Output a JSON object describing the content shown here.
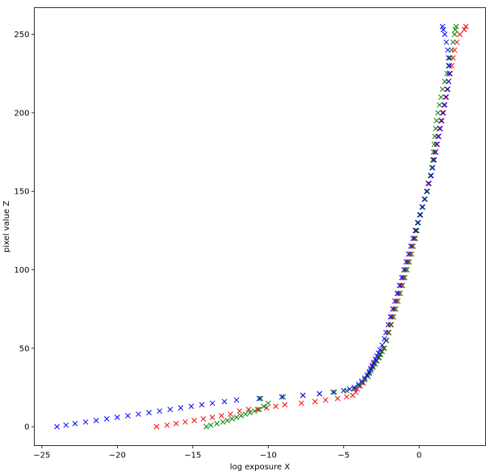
{
  "chart_data": {
    "type": "scatter",
    "title": "",
    "xlabel": "log exposure X",
    "ylabel": "pixel value Z",
    "xlim": [
      -25.5,
      4.4
    ],
    "ylim": [
      -12,
      267
    ],
    "xticks": [
      -25,
      -20,
      -15,
      -10,
      -5,
      0
    ],
    "yticks": [
      0,
      50,
      100,
      150,
      200,
      250
    ],
    "grid": false,
    "legend": "none",
    "marker": "x",
    "series": [
      {
        "color": "#ff0000",
        "points": [
          [
            -17.4,
            0
          ],
          [
            -16.7,
            1
          ],
          [
            -16.1,
            2
          ],
          [
            -15.5,
            3
          ],
          [
            -14.9,
            4
          ],
          [
            -14.3,
            5
          ],
          [
            -13.7,
            6
          ],
          [
            -13.1,
            7
          ],
          [
            -12.5,
            8
          ],
          [
            -11.9,
            10
          ],
          [
            -11.3,
            11
          ],
          [
            -10.7,
            11
          ],
          [
            -10.1,
            12
          ],
          [
            -9.5,
            13
          ],
          [
            -8.9,
            14
          ],
          [
            -7.8,
            15
          ],
          [
            -6.9,
            16
          ],
          [
            -6.2,
            17
          ],
          [
            -5.4,
            18
          ],
          [
            -4.8,
            19
          ],
          [
            -4.4,
            20
          ],
          [
            -4.2,
            22
          ],
          [
            -4.1,
            24
          ],
          [
            -3.9,
            26
          ],
          [
            -3.7,
            28
          ],
          [
            -3.6,
            30
          ],
          [
            -3.4,
            32
          ],
          [
            -3.3,
            34
          ],
          [
            -3.2,
            36
          ],
          [
            -3.1,
            38
          ],
          [
            -3.0,
            40
          ],
          [
            -2.85,
            42
          ],
          [
            -2.7,
            44
          ],
          [
            -2.6,
            46
          ],
          [
            -2.45,
            48
          ],
          [
            -2.35,
            50
          ],
          [
            -2.2,
            55
          ],
          [
            -2.05,
            60
          ],
          [
            -1.9,
            65
          ],
          [
            -1.8,
            70
          ],
          [
            -1.65,
            75
          ],
          [
            -1.5,
            80
          ],
          [
            -1.35,
            85
          ],
          [
            -1.2,
            90
          ],
          [
            -1.05,
            95
          ],
          [
            -0.9,
            100
          ],
          [
            -0.75,
            105
          ],
          [
            -0.6,
            110
          ],
          [
            -0.45,
            115
          ],
          [
            -0.3,
            120
          ],
          [
            -0.2,
            125
          ],
          [
            -0.1,
            130
          ],
          [
            0.05,
            135
          ],
          [
            0.2,
            140
          ],
          [
            0.35,
            145
          ],
          [
            0.5,
            150
          ],
          [
            0.6,
            155
          ],
          [
            0.75,
            160
          ],
          [
            0.85,
            165
          ],
          [
            0.95,
            170
          ],
          [
            1.05,
            175
          ],
          [
            1.15,
            180
          ],
          [
            1.25,
            185
          ],
          [
            1.35,
            190
          ],
          [
            1.45,
            195
          ],
          [
            1.55,
            200
          ],
          [
            1.65,
            205
          ],
          [
            1.75,
            210
          ],
          [
            1.85,
            215
          ],
          [
            1.95,
            220
          ],
          [
            2.05,
            225
          ],
          [
            2.15,
            230
          ],
          [
            2.25,
            235
          ],
          [
            2.35,
            240
          ],
          [
            2.5,
            245
          ],
          [
            2.7,
            250
          ],
          [
            3.0,
            253
          ],
          [
            3.1,
            255
          ]
        ]
      },
      {
        "color": "#008000",
        "points": [
          [
            -14.1,
            0
          ],
          [
            -13.8,
            1
          ],
          [
            -13.4,
            2
          ],
          [
            -13.0,
            3
          ],
          [
            -12.7,
            4
          ],
          [
            -12.4,
            5
          ],
          [
            -12.1,
            6
          ],
          [
            -11.8,
            7
          ],
          [
            -11.5,
            8
          ],
          [
            -11.2,
            9
          ],
          [
            -10.9,
            10
          ],
          [
            -10.6,
            11
          ],
          [
            -10.3,
            13
          ],
          [
            -10.0,
            15
          ],
          [
            -10.5,
            18
          ],
          [
            -9.0,
            19
          ],
          [
            -7.7,
            20
          ],
          [
            -6.6,
            21
          ],
          [
            -5.6,
            22
          ],
          [
            -4.8,
            23
          ],
          [
            -4.3,
            24
          ],
          [
            -4.0,
            26
          ],
          [
            -3.8,
            28
          ],
          [
            -3.6,
            30
          ],
          [
            -3.4,
            32
          ],
          [
            -3.3,
            34
          ],
          [
            -3.2,
            36
          ],
          [
            -3.05,
            38
          ],
          [
            -2.9,
            40
          ],
          [
            -2.8,
            42
          ],
          [
            -2.65,
            44
          ],
          [
            -2.55,
            46
          ],
          [
            -2.45,
            48
          ],
          [
            -2.3,
            50
          ],
          [
            -2.15,
            55
          ],
          [
            -2.0,
            60
          ],
          [
            -1.85,
            65
          ],
          [
            -1.7,
            70
          ],
          [
            -1.55,
            75
          ],
          [
            -1.4,
            80
          ],
          [
            -1.25,
            85
          ],
          [
            -1.1,
            90
          ],
          [
            -0.95,
            95
          ],
          [
            -0.8,
            100
          ],
          [
            -0.65,
            105
          ],
          [
            -0.5,
            110
          ],
          [
            -0.4,
            115
          ],
          [
            -0.25,
            120
          ],
          [
            -0.15,
            125
          ],
          [
            -0.05,
            130
          ],
          [
            0.1,
            135
          ],
          [
            0.25,
            140
          ],
          [
            0.4,
            145
          ],
          [
            0.55,
            150
          ],
          [
            0.65,
            155
          ],
          [
            0.75,
            160
          ],
          [
            0.85,
            165
          ],
          [
            0.9,
            170
          ],
          [
            0.95,
            175
          ],
          [
            1.0,
            180
          ],
          [
            1.05,
            185
          ],
          [
            1.1,
            190
          ],
          [
            1.15,
            195
          ],
          [
            1.25,
            200
          ],
          [
            1.35,
            205
          ],
          [
            1.45,
            210
          ],
          [
            1.55,
            215
          ],
          [
            1.7,
            220
          ],
          [
            1.85,
            225
          ],
          [
            1.95,
            230
          ],
          [
            2.05,
            235
          ],
          [
            2.15,
            240
          ],
          [
            2.25,
            245
          ],
          [
            2.35,
            250
          ],
          [
            2.4,
            253
          ],
          [
            2.45,
            255
          ]
        ]
      },
      {
        "color": "#0000ff",
        "points": [
          [
            -24.0,
            0
          ],
          [
            -23.4,
            1
          ],
          [
            -22.8,
            2
          ],
          [
            -22.1,
            3
          ],
          [
            -21.4,
            4
          ],
          [
            -20.7,
            5
          ],
          [
            -20.0,
            6
          ],
          [
            -19.3,
            7
          ],
          [
            -18.6,
            8
          ],
          [
            -17.9,
            9
          ],
          [
            -17.2,
            10
          ],
          [
            -16.5,
            11
          ],
          [
            -15.8,
            12
          ],
          [
            -15.1,
            13
          ],
          [
            -14.4,
            14
          ],
          [
            -13.7,
            15
          ],
          [
            -12.9,
            16
          ],
          [
            -12.1,
            17
          ],
          [
            -10.6,
            18
          ],
          [
            -9.1,
            19
          ],
          [
            -7.7,
            20
          ],
          [
            -6.6,
            21
          ],
          [
            -5.7,
            22
          ],
          [
            -5.0,
            23
          ],
          [
            -4.6,
            24
          ],
          [
            -4.3,
            25
          ],
          [
            -4.0,
            27
          ],
          [
            -3.8,
            29
          ],
          [
            -3.6,
            31
          ],
          [
            -3.45,
            33
          ],
          [
            -3.3,
            35
          ],
          [
            -3.2,
            37
          ],
          [
            -3.1,
            39
          ],
          [
            -3.0,
            41
          ],
          [
            -2.9,
            43
          ],
          [
            -2.8,
            45
          ],
          [
            -2.7,
            47
          ],
          [
            -2.6,
            49
          ],
          [
            -2.45,
            52
          ],
          [
            -2.3,
            56
          ],
          [
            -2.2,
            60
          ],
          [
            -2.05,
            65
          ],
          [
            -1.9,
            70
          ],
          [
            -1.75,
            75
          ],
          [
            -1.6,
            80
          ],
          [
            -1.45,
            85
          ],
          [
            -1.3,
            90
          ],
          [
            -1.15,
            95
          ],
          [
            -1.0,
            100
          ],
          [
            -0.85,
            105
          ],
          [
            -0.7,
            110
          ],
          [
            -0.55,
            115
          ],
          [
            -0.4,
            120
          ],
          [
            -0.25,
            125
          ],
          [
            -0.1,
            130
          ],
          [
            0.05,
            135
          ],
          [
            0.2,
            140
          ],
          [
            0.35,
            145
          ],
          [
            0.5,
            150
          ],
          [
            0.65,
            155
          ],
          [
            0.8,
            160
          ],
          [
            0.9,
            165
          ],
          [
            1.0,
            170
          ],
          [
            1.1,
            175
          ],
          [
            1.2,
            180
          ],
          [
            1.3,
            185
          ],
          [
            1.4,
            190
          ],
          [
            1.5,
            195
          ],
          [
            1.6,
            200
          ],
          [
            1.7,
            205
          ],
          [
            1.8,
            210
          ],
          [
            1.9,
            215
          ],
          [
            1.95,
            220
          ],
          [
            2.0,
            225
          ],
          [
            2.0,
            230
          ],
          [
            1.95,
            235
          ],
          [
            1.9,
            240
          ],
          [
            1.8,
            245
          ],
          [
            1.7,
            250
          ],
          [
            1.6,
            253
          ],
          [
            1.55,
            255
          ]
        ]
      }
    ]
  }
}
